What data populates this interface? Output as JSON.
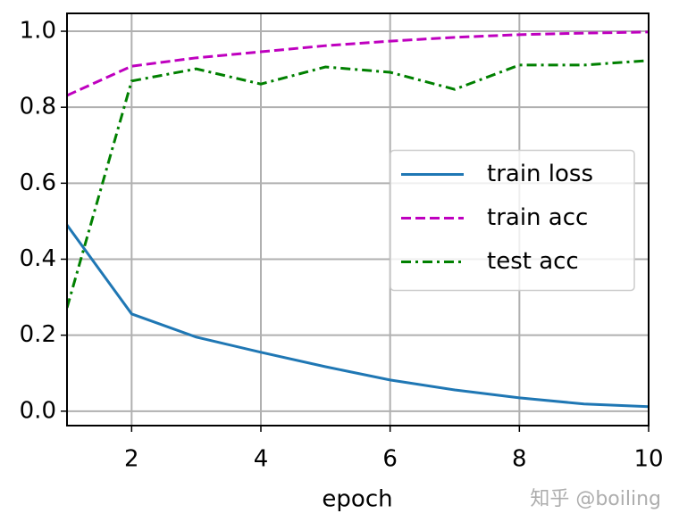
{
  "chart_data": {
    "type": "line",
    "x": [
      1,
      2,
      3,
      4,
      5,
      6,
      7,
      8,
      9,
      10
    ],
    "series": [
      {
        "name": "train loss",
        "color": "#1f77b4",
        "dash": "solid",
        "values": [
          0.49,
          0.256,
          0.195,
          0.155,
          0.117,
          0.082,
          0.056,
          0.035,
          0.019,
          0.012
        ]
      },
      {
        "name": "train acc",
        "color": "#bf00bf",
        "dash": "dashed",
        "values": [
          0.831,
          0.908,
          0.93,
          0.946,
          0.962,
          0.974,
          0.984,
          0.991,
          0.995,
          0.998
        ]
      },
      {
        "name": "test acc",
        "color": "#008000",
        "dash": "dashdot",
        "values": [
          0.272,
          0.869,
          0.901,
          0.861,
          0.906,
          0.892,
          0.847,
          0.911,
          0.911,
          0.923
        ]
      }
    ],
    "xlabel": "epoch",
    "xlim": [
      1,
      10
    ],
    "xticks": [
      2,
      4,
      6,
      8,
      10
    ],
    "ylim": [
      -0.038,
      1.047
    ],
    "yticks": [
      {
        "value": 0,
        "label": "0.0"
      },
      0.2,
      0.4,
      0.6,
      0.8,
      {
        "value": 1,
        "label": "1.0"
      }
    ],
    "grid": true,
    "legend": "center right",
    "watermark": "知乎 @boiling"
  }
}
